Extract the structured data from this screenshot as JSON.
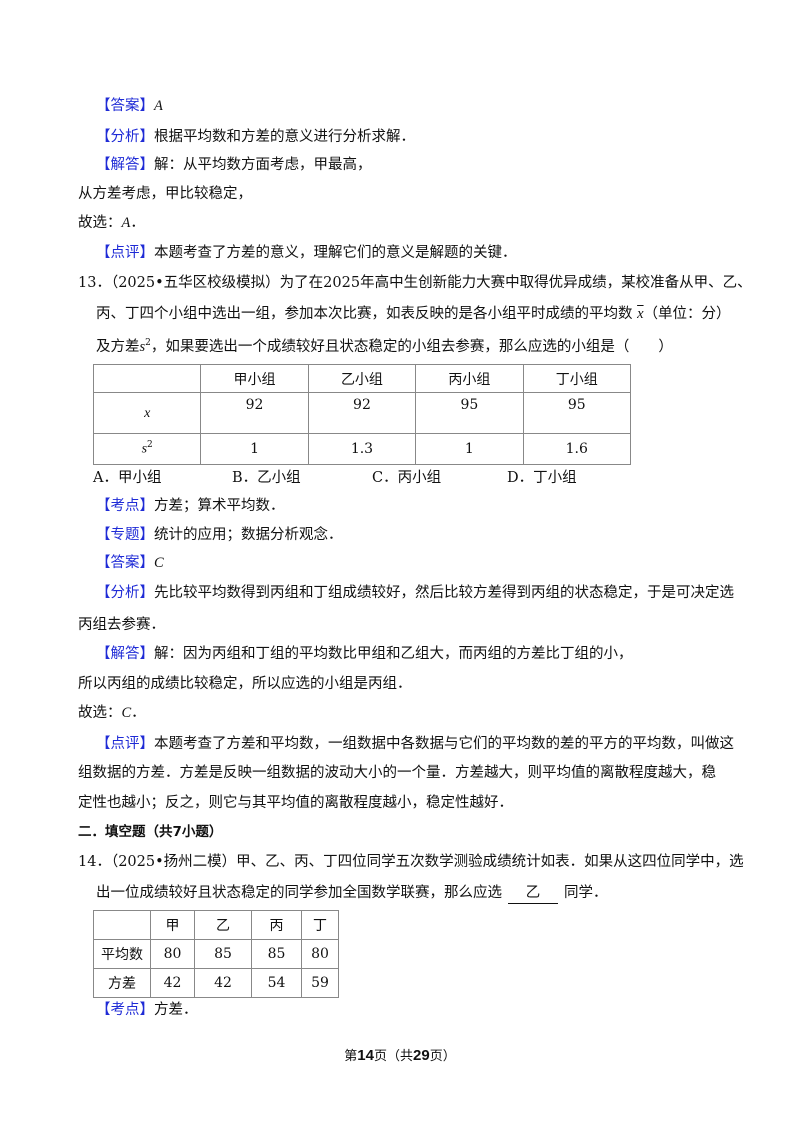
{
  "q12": {
    "answer_label": "【答案】",
    "answer": "A",
    "analysis_label": "【分析】",
    "analysis": "根据平均数和方差的意义进行分析求解．",
    "solution_label": "【解答】",
    "solution": [
      "解：从平均数方面考虑，甲最高，",
      "从方差考虑，甲比较稳定，",
      "故选："
    ],
    "solution_choice": "A",
    "comment_label": "【点评】",
    "comment": "本题考查了方差的意义，理解它们的意义是解题的关键．"
  },
  "q13": {
    "number": "13．",
    "source": "（2025•五华区校级模拟）",
    "stem": [
      "为了在2025年高中生创新能力大赛中取得优异成绩，某校准备从甲、乙、",
      "丙、丁四个小组中选出一组，参加本次比赛，如表反映的是各小组平时成绩的平均数",
      "（单位：分）",
      "及方差",
      "，如果要选出一个成绩较好且状态稳定的小组去参赛，那么应选的小组是（　　）"
    ],
    "xbar": "x",
    "s": "s",
    "sup": "2",
    "table": {
      "headers": [
        "",
        "甲小组",
        "乙小组",
        "丙小组",
        "丁小组"
      ],
      "row_mean": [
        "92",
        "92",
        "95",
        "95"
      ],
      "row_var": [
        "1",
        "1.3",
        "1",
        "1.6"
      ]
    },
    "options": [
      "A．甲小组",
      "B．乙小组",
      "C．丙小组",
      "D．丁小组"
    ],
    "point_label": "【考点】",
    "point": "方差；算术平均数．",
    "topic_label": "【专题】",
    "topic": "统计的应用；数据分析观念．",
    "answer_label": "【答案】",
    "answer": "C",
    "analysis_label": "【分析】",
    "analysis": [
      "先比较平均数得到丙组和丁组成绩较好，然后比较方差得到丙组的状态稳定，于是可决定选",
      "丙组去参赛．"
    ],
    "solution_label": "【解答】",
    "solution": [
      "解：因为丙组和丁组的平均数比甲组和乙组大，而丙组的方差比丁组的小，",
      "所以丙组的成绩比较稳定，所以应选的小组是丙组．",
      "故选："
    ],
    "solution_choice": "C",
    "comment_label": "【点评】",
    "comment": [
      "本题考查了方差和平均数，一组数据中各数据与它们的平均数的差的平方的平均数，叫做这",
      "组数据的方差．方差是反映一组数据的波动大小的一个量．方差越大，则平均值的离散程度越大，稳",
      "定性也越小；反之，则它与其平均值的离散程度越小，稳定性越好．"
    ]
  },
  "section": "二．填空题（共7小题）",
  "q14": {
    "number": "14．",
    "source": "（2025•扬州二模）",
    "stem": [
      "甲、乙、丙、丁四位同学五次数学测验成绩统计如表．如果从这四位同学中，选",
      "出一位成绩较好且状态稳定的同学参加全国数学联赛，那么应选",
      "同学．"
    ],
    "blank": "乙",
    "table": {
      "headers": [
        "",
        "甲",
        "乙",
        "丙",
        "丁"
      ],
      "rows": [
        [
          "平均数",
          "80",
          "85",
          "85",
          "80"
        ],
        [
          "方差",
          "42",
          "42",
          "54",
          "59"
        ]
      ]
    },
    "point_label": "【考点】",
    "point": "方差．"
  },
  "footer": {
    "pre": "第",
    "page": "14",
    "mid": "页（共",
    "total": "29",
    "post": "页）"
  }
}
